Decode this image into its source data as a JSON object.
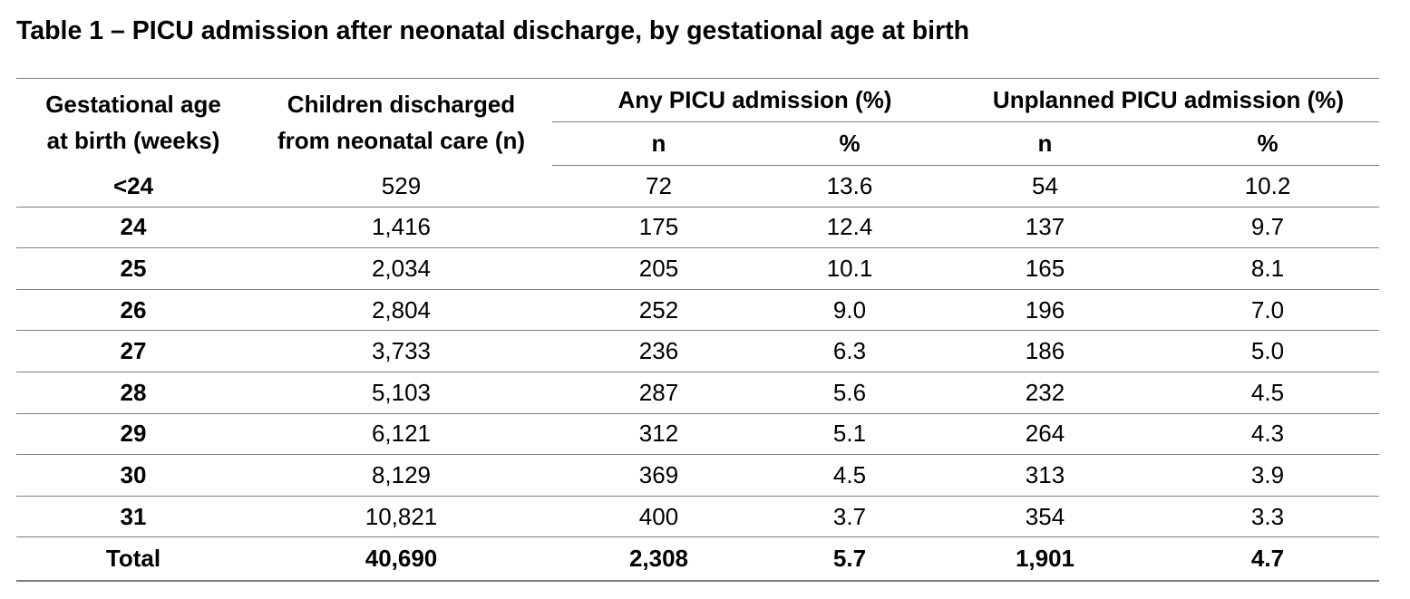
{
  "title": "Table 1 – PICU admission after neonatal discharge, by gestational age at birth",
  "columns": {
    "stub": [
      "Gestational age",
      "at birth (weeks)"
    ],
    "discharged": [
      "Children discharged",
      "from neonatal care (n)"
    ],
    "any_group": "Any PICU admission (%)",
    "unplanned_group": "Unplanned PICU admission (%)",
    "n": "n",
    "pct": "%"
  },
  "rows": [
    {
      "ga": "<24",
      "discharged": "529",
      "any_n": "72",
      "any_pct": "13.6",
      "unp_n": "54",
      "unp_pct": "10.2"
    },
    {
      "ga": "24",
      "discharged": "1,416",
      "any_n": "175",
      "any_pct": "12.4",
      "unp_n": "137",
      "unp_pct": "9.7"
    },
    {
      "ga": "25",
      "discharged": "2,034",
      "any_n": "205",
      "any_pct": "10.1",
      "unp_n": "165",
      "unp_pct": "8.1"
    },
    {
      "ga": "26",
      "discharged": "2,804",
      "any_n": "252",
      "any_pct": "9.0",
      "unp_n": "196",
      "unp_pct": "7.0"
    },
    {
      "ga": "27",
      "discharged": "3,733",
      "any_n": "236",
      "any_pct": "6.3",
      "unp_n": "186",
      "unp_pct": "5.0"
    },
    {
      "ga": "28",
      "discharged": "5,103",
      "any_n": "287",
      "any_pct": "5.6",
      "unp_n": "232",
      "unp_pct": "4.5"
    },
    {
      "ga": "29",
      "discharged": "6,121",
      "any_n": "312",
      "any_pct": "5.1",
      "unp_n": "264",
      "unp_pct": "4.3"
    },
    {
      "ga": "30",
      "discharged": "8,129",
      "any_n": "369",
      "any_pct": "4.5",
      "unp_n": "313",
      "unp_pct": "3.9"
    },
    {
      "ga": "31",
      "discharged": "10,821",
      "any_n": "400",
      "any_pct": "3.7",
      "unp_n": "354",
      "unp_pct": "3.3"
    }
  ],
  "total": {
    "label": "Total",
    "discharged": "40,690",
    "any_n": "2,308",
    "any_pct": "5.7",
    "unp_n": "1,901",
    "unp_pct": "4.7"
  }
}
